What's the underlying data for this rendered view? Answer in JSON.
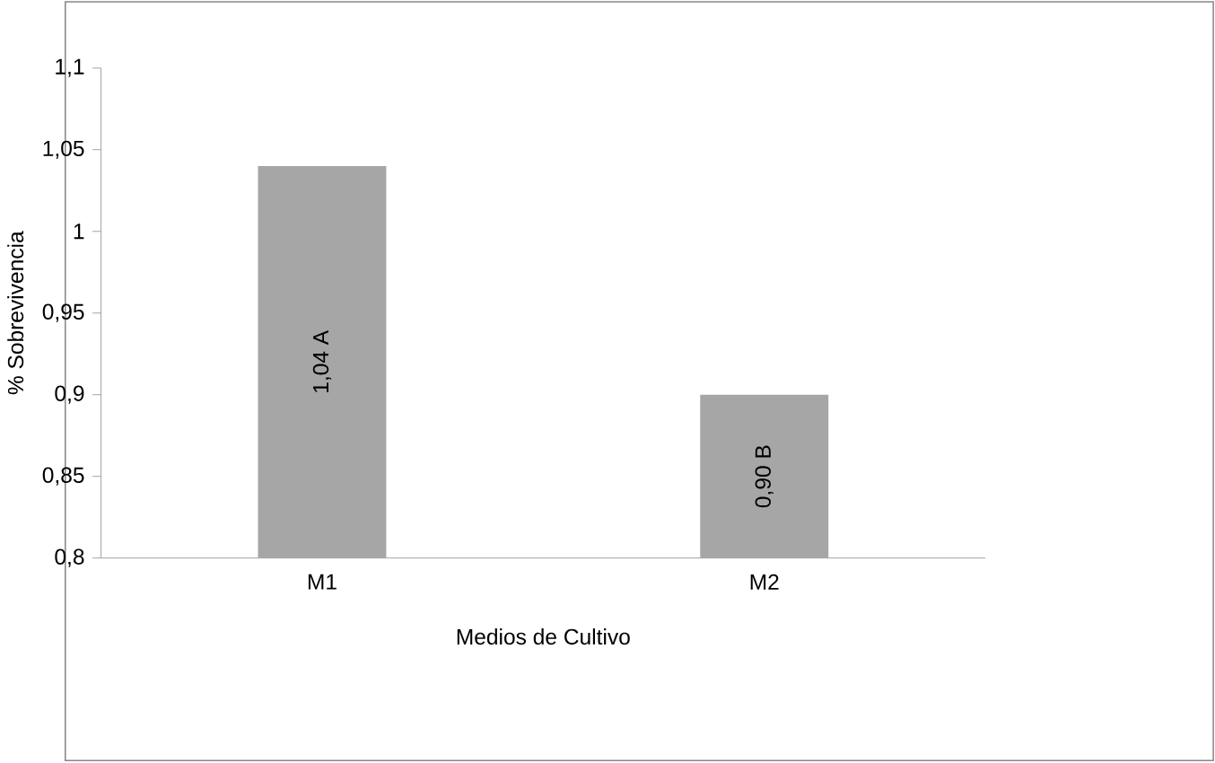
{
  "chart_data": {
    "type": "bar",
    "xlabel": "Medios de Cultivo",
    "ylabel": "% Sobrevivencia",
    "categories": [
      "M1",
      "M2"
    ],
    "values": [
      1.04,
      0.9
    ],
    "color": "#a6a6a6",
    "value_labels": [
      "1,04  A",
      "0,90  B"
    ],
    "ylim": [
      0.8,
      1.1
    ],
    "yticks": [
      {
        "value": 0.8,
        "label": "0,8"
      },
      {
        "value": 0.85,
        "label": "0,85"
      },
      {
        "value": 0.9,
        "label": "0,9"
      },
      {
        "value": 0.95,
        "label": "0,95"
      },
      {
        "value": 1,
        "label": "1"
      },
      {
        "value": 1.05,
        "label": "1,05"
      },
      {
        "value": 1.1,
        "label": "1,1"
      }
    ]
  }
}
